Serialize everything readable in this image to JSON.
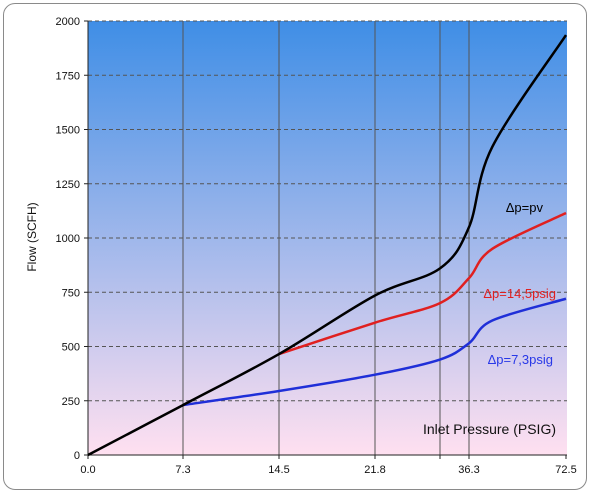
{
  "chart_data": {
    "type": "line",
    "title": "",
    "xlabel": "Inlet Pressure (PSIG)",
    "ylabel": "Flow (SCFH)",
    "x_ticks": [
      "0.0",
      "7.3",
      "14.5",
      "21.8",
      "29",
      "36.3",
      "72.5"
    ],
    "x_tick_visible": [
      true,
      true,
      true,
      true,
      false,
      true,
      true
    ],
    "y_ticks": [
      0,
      250,
      500,
      750,
      1000,
      1250,
      1500,
      1750,
      2000
    ],
    "ylim": [
      0,
      2000
    ],
    "grid": true,
    "background_gradient": [
      "#3f8ee6",
      "#ffe0f0"
    ],
    "series": [
      {
        "name": "Δp=pv",
        "color": "#000000",
        "label_color": "#000000",
        "points": [
          [
            0,
            0
          ],
          [
            7.3,
            230
          ],
          [
            14.5,
            465
          ],
          [
            21.8,
            735
          ],
          [
            29,
            860
          ],
          [
            36.3,
            1050
          ],
          [
            45,
            1420
          ],
          [
            72.5,
            1935
          ]
        ]
      },
      {
        "name": "Δp=14,5psig",
        "color": "#e02020",
        "label_color": "#e02020",
        "points": [
          [
            14.5,
            465
          ],
          [
            21.8,
            610
          ],
          [
            29,
            700
          ],
          [
            36.3,
            815
          ],
          [
            45,
            950
          ],
          [
            72.5,
            1115
          ]
        ]
      },
      {
        "name": "Δp=7,3psig",
        "color": "#1f2fd8",
        "label_color": "#2838e8",
        "points": [
          [
            7.3,
            230
          ],
          [
            14.5,
            295
          ],
          [
            21.8,
            370
          ],
          [
            29,
            440
          ],
          [
            36.3,
            515
          ],
          [
            45,
            620
          ],
          [
            72.5,
            720
          ]
        ]
      }
    ]
  }
}
